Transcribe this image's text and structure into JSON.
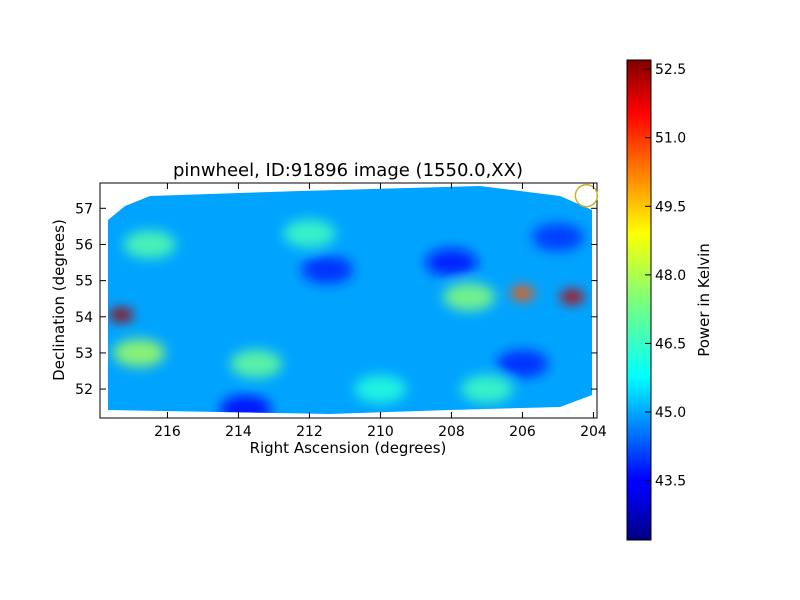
{
  "chart_data": {
    "type": "heatmap",
    "title": "pinwheel, ID:91896 image (1550.0,XX)",
    "xlabel": "Right Ascension (degrees)",
    "ylabel": "Declination (degrees)",
    "xlim": [
      217.9,
      203.9
    ],
    "ylim": [
      51.2,
      57.7
    ],
    "x_ticks": [
      216,
      214,
      212,
      210,
      208,
      206,
      204
    ],
    "y_ticks": [
      52,
      53,
      54,
      55,
      56,
      57
    ],
    "x_tick_labels": [
      "216",
      "214",
      "212",
      "210",
      "208",
      "206",
      "204"
    ],
    "y_tick_labels": [
      "52",
      "53",
      "54",
      "55",
      "56",
      "57"
    ],
    "colorbar": {
      "label": "Power in Kelvin",
      "range": [
        42.2,
        52.7
      ],
      "ticks": [
        43.5,
        45.0,
        46.5,
        48.0,
        49.5,
        51.0,
        52.5
      ],
      "tick_labels": [
        "43.5",
        "45.0",
        "46.5",
        "48.0",
        "49.5",
        "51.0",
        "52.5"
      ],
      "colormap": "jet"
    },
    "background_value": 45.2,
    "features": [
      {
        "ra": 217.3,
        "dec": 54.05,
        "value": 52.3
      },
      {
        "ra": 204.6,
        "dec": 54.55,
        "value": 52.0
      },
      {
        "ra": 206.0,
        "dec": 54.65,
        "value": 50.5
      },
      {
        "ra": 207.5,
        "dec": 54.55,
        "value": 47.5
      },
      {
        "ra": 216.8,
        "dec": 53.0,
        "value": 47.8
      },
      {
        "ra": 213.5,
        "dec": 52.7,
        "value": 47.2
      },
      {
        "ra": 216.5,
        "dec": 56.0,
        "value": 47.0
      },
      {
        "ra": 212.0,
        "dec": 56.3,
        "value": 46.8
      },
      {
        "ra": 210.0,
        "dec": 52.0,
        "value": 46.5
      },
      {
        "ra": 207.0,
        "dec": 52.0,
        "value": 46.8
      },
      {
        "ra": 211.5,
        "dec": 55.3,
        "value": 43.8
      },
      {
        "ra": 208.0,
        "dec": 55.5,
        "value": 43.6
      },
      {
        "ra": 206.0,
        "dec": 52.7,
        "value": 43.8
      },
      {
        "ra": 205.0,
        "dec": 56.2,
        "value": 44.0
      },
      {
        "ra": 213.8,
        "dec": 51.45,
        "value": 43.5
      }
    ],
    "beam_marker": {
      "ra": 204.2,
      "dec": 57.35,
      "color": "#c8b428"
    }
  }
}
